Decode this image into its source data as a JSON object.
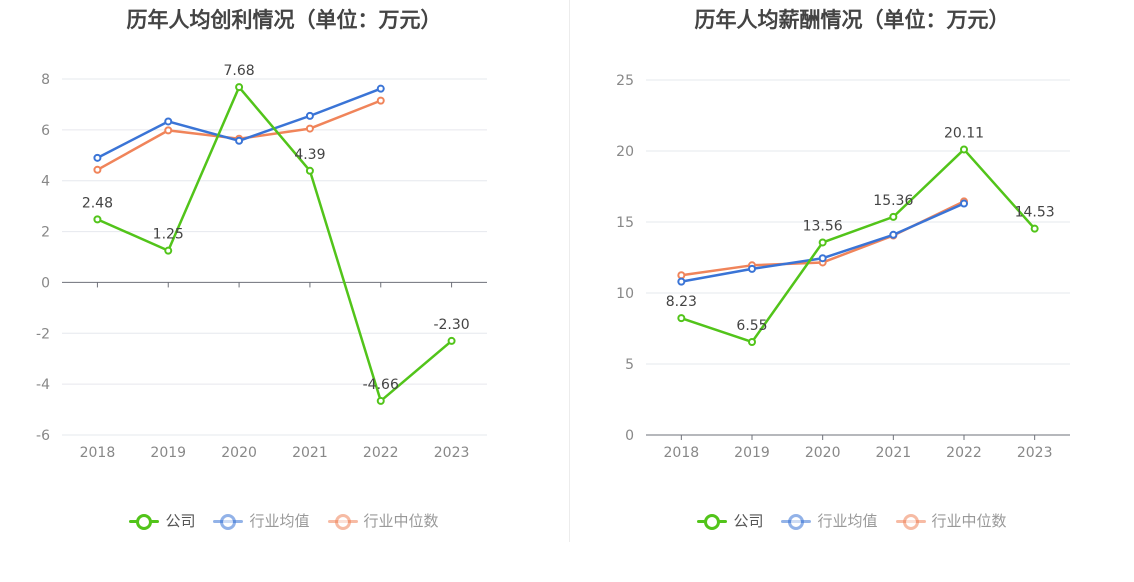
{
  "chart_data": [
    {
      "type": "line",
      "title": "历年人均创利情况（单位：万元）",
      "categories": [
        "2018",
        "2019",
        "2020",
        "2021",
        "2022",
        "2023"
      ],
      "ylim": [
        -6,
        8
      ],
      "yticks": [
        8,
        6,
        4,
        2,
        0,
        -2,
        -4,
        -6
      ],
      "ytick_labels": [
        "8",
        "6",
        "4",
        "2",
        "0",
        "-2",
        "-4",
        "-6"
      ],
      "grid": true,
      "legend_position": "bottom",
      "series": [
        {
          "name": "公司",
          "color": "#52c41a",
          "values": [
            2.48,
            1.25,
            7.68,
            4.39,
            -4.66,
            -2.3
          ],
          "labels": [
            "2.48",
            "1.25",
            "7.68",
            "4.39",
            "-4.66",
            "-2.30"
          ]
        },
        {
          "name": "行业均值",
          "color": "#3a74d6",
          "values": [
            4.9,
            6.33,
            5.57,
            6.55,
            7.62,
            null
          ]
        },
        {
          "name": "行业中位数",
          "color": "#f0845a",
          "values": [
            4.43,
            5.98,
            5.65,
            6.05,
            7.15,
            null
          ]
        }
      ]
    },
    {
      "type": "line",
      "title": "历年人均薪酬情况（单位：万元）",
      "categories": [
        "2018",
        "2019",
        "2020",
        "2021",
        "2022",
        "2023"
      ],
      "ylim": [
        0,
        25
      ],
      "yticks": [
        25,
        20,
        15,
        10,
        5,
        0
      ],
      "ytick_labels": [
        "25",
        "20",
        "15",
        "10",
        "5",
        "0"
      ],
      "grid": true,
      "legend_position": "bottom",
      "series": [
        {
          "name": "公司",
          "color": "#52c41a",
          "values": [
            8.23,
            6.55,
            13.56,
            15.36,
            20.11,
            14.53
          ],
          "labels": [
            "8.23",
            "6.55",
            "13.56",
            "15.36",
            "20.11",
            "14.53"
          ]
        },
        {
          "name": "行业均值",
          "color": "#3a74d6",
          "values": [
            10.8,
            11.7,
            12.45,
            14.1,
            16.3,
            null
          ]
        },
        {
          "name": "行业中位数",
          "color": "#f0845a",
          "values": [
            11.25,
            11.95,
            12.15,
            14.05,
            16.45,
            null
          ]
        }
      ]
    }
  ]
}
